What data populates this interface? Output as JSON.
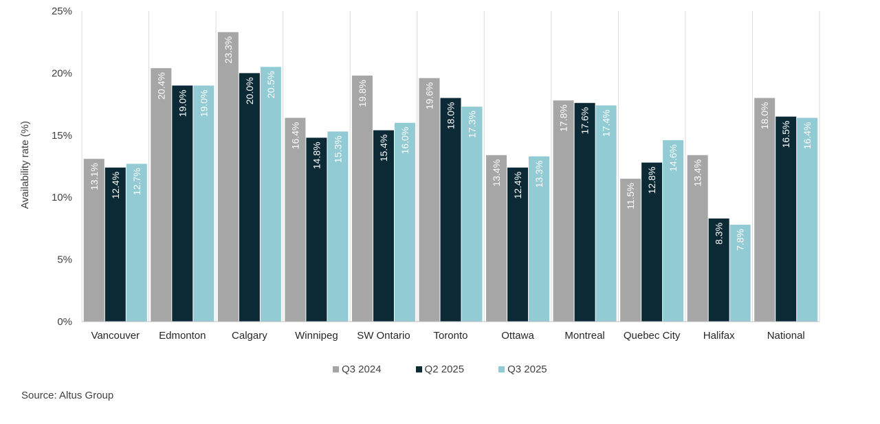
{
  "chart_data": {
    "type": "bar",
    "ylabel": "Availability rate (%)",
    "xlabel": "",
    "ylim": [
      0,
      25
    ],
    "yticks": [
      0,
      5,
      10,
      15,
      20,
      25
    ],
    "ytick_labels": [
      "0%",
      "5%",
      "10%",
      "15%",
      "20%",
      "25%"
    ],
    "categories": [
      "Vancouver",
      "Edmonton",
      "Calgary",
      "Winnipeg",
      "SW Ontario",
      "Toronto",
      "Ottawa",
      "Montreal",
      "Quebec City",
      "Halifax",
      "National"
    ],
    "series": [
      {
        "name": "Q3 2024",
        "color": "#a6a6a6",
        "label_color": "#ffffff",
        "values": [
          13.1,
          20.4,
          23.3,
          16.4,
          19.8,
          19.6,
          13.4,
          17.8,
          11.5,
          13.4,
          18.0
        ],
        "labels": [
          "13.1%",
          "20.4%",
          "23.3%",
          "16.4%",
          "19.8%",
          "19.6%",
          "13.4%",
          "17.8%",
          "11.5%",
          "13.4%",
          "18.0%"
        ]
      },
      {
        "name": "Q2 2025",
        "color": "#0b2a35",
        "label_color": "#ffffff",
        "values": [
          12.4,
          19.0,
          20.0,
          14.8,
          15.4,
          18.0,
          12.4,
          17.6,
          12.8,
          8.3,
          16.5
        ],
        "labels": [
          "12.4%",
          "19.0%",
          "20.0%",
          "14.8%",
          "15.4%",
          "18.0%",
          "12.4%",
          "17.6%",
          "12.8%",
          "8.3%",
          "16.5%"
        ]
      },
      {
        "name": "Q3 2025",
        "color": "#92cbd3",
        "label_color": "#ffffff",
        "values": [
          12.7,
          19.0,
          20.5,
          15.3,
          16.0,
          17.3,
          13.3,
          17.4,
          14.6,
          7.8,
          16.4
        ],
        "labels": [
          "12.7%",
          "19.0%",
          "20.5%",
          "15.3%",
          "16.0%",
          "17.3%",
          "13.3%",
          "17.4%",
          "14.6%",
          "7.8%",
          "16.4%"
        ]
      }
    ],
    "grid": "vertical-separators",
    "legend_position": "bottom-center"
  },
  "footer": {
    "source": "Source: Altus Group"
  }
}
